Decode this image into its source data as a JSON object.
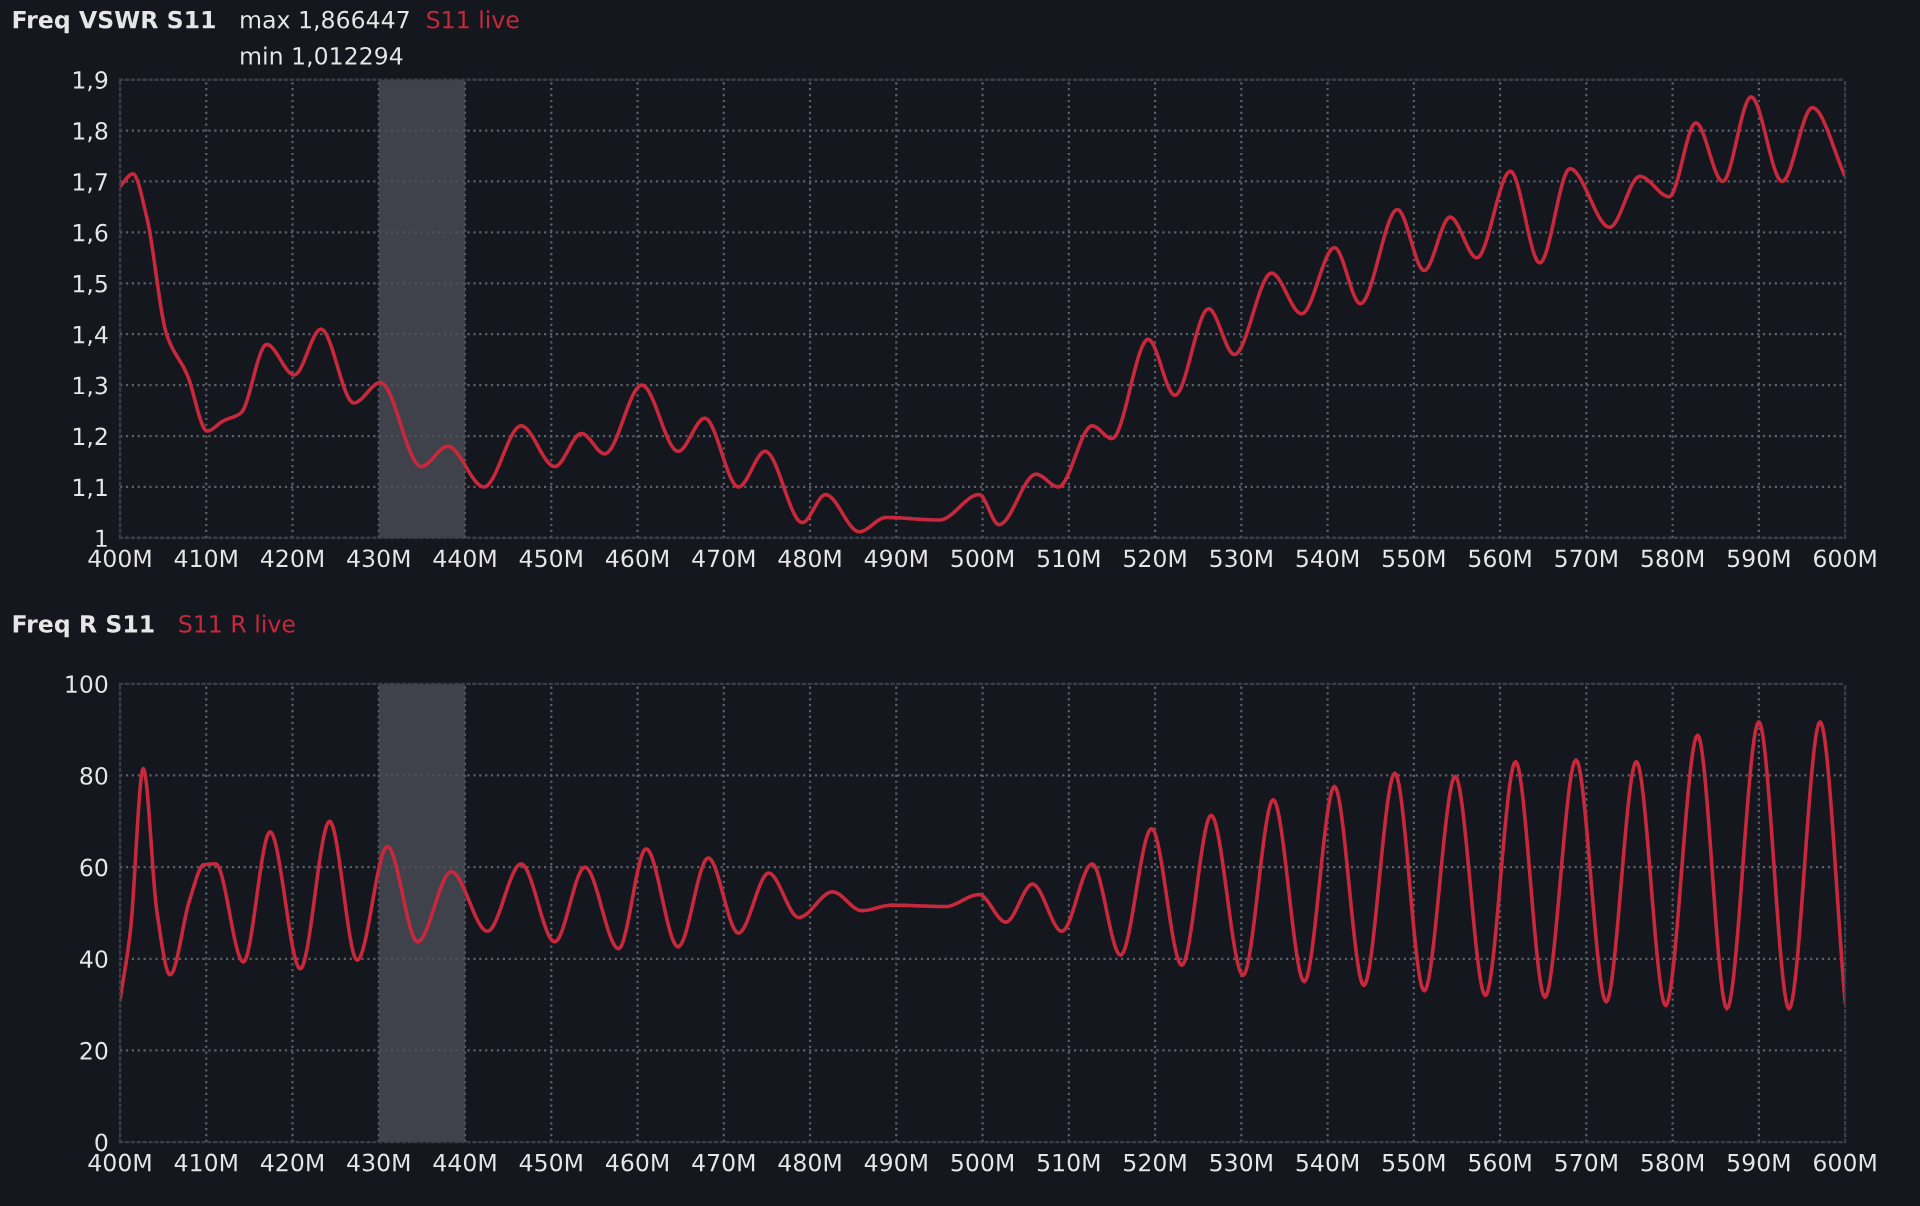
{
  "chart_data": [
    {
      "type": "line",
      "title": "Freq VSWR S11",
      "annotations": [
        "max 1,866447",
        "min 1,012294"
      ],
      "xlim": [
        400,
        600
      ],
      "xticks": [
        {
          "value": 400,
          "label": "400M"
        },
        {
          "value": 410,
          "label": "410M"
        },
        {
          "value": 420,
          "label": "420M"
        },
        {
          "value": 430,
          "label": "430M"
        },
        {
          "value": 440,
          "label": "440M"
        },
        {
          "value": 450,
          "label": "450M"
        },
        {
          "value": 460,
          "label": "460M"
        },
        {
          "value": 470,
          "label": "470M"
        },
        {
          "value": 480,
          "label": "480M"
        },
        {
          "value": 490,
          "label": "490M"
        },
        {
          "value": 500,
          "label": "500M"
        },
        {
          "value": 510,
          "label": "510M"
        },
        {
          "value": 520,
          "label": "520M"
        },
        {
          "value": 530,
          "label": "530M"
        },
        {
          "value": 540,
          "label": "540M"
        },
        {
          "value": 550,
          "label": "550M"
        },
        {
          "value": 560,
          "label": "560M"
        },
        {
          "value": 570,
          "label": "570M"
        },
        {
          "value": 580,
          "label": "580M"
        },
        {
          "value": 590,
          "label": "590M"
        },
        {
          "value": 600,
          "label": "600M"
        }
      ],
      "ylim": [
        1,
        1.9
      ],
      "yticks": [
        {
          "value": 1,
          "label": "1"
        },
        {
          "value": 1.1,
          "label": "1,1"
        },
        {
          "value": 1.2,
          "label": "1,2"
        },
        {
          "value": 1.3,
          "label": "1,3"
        },
        {
          "value": 1.4,
          "label": "1,4"
        },
        {
          "value": 1.5,
          "label": "1,5"
        },
        {
          "value": 1.6,
          "label": "1,6"
        },
        {
          "value": 1.7,
          "label": "1,7"
        },
        {
          "value": 1.8,
          "label": "1,8"
        },
        {
          "value": 1.9,
          "label": "1,9"
        }
      ],
      "grid": true,
      "bands": [
        {
          "axis": "x",
          "from": 430,
          "to": 440,
          "color": "#4a4d55"
        }
      ],
      "series": [
        {
          "name": "S11 live",
          "color": "#c8283c",
          "x": [
            400,
            401.5,
            403.1,
            405.4,
            407.8,
            410.1,
            412,
            414,
            417,
            420.2,
            423.3,
            427.1,
            430.2,
            434.9,
            438,
            442.2,
            446.5,
            450.4,
            453.5,
            456.2,
            460.5,
            464.7,
            467.8,
            471.7,
            474.8,
            479.1,
            481.8,
            485.7,
            488.8,
            495,
            499.6,
            501.9,
            506.2,
            508.8,
            512.7,
            515,
            519.2,
            522.3,
            526.2,
            529.2,
            533.5,
            537,
            540.8,
            543.8,
            548.1,
            551.2,
            554.2,
            557.3,
            561.2,
            564.6,
            568.1,
            572.7,
            576.2,
            579.6,
            582.7,
            585.8,
            589.1,
            592.7,
            596.2,
            600
          ],
          "values": [
            1.69,
            1.715,
            1.63,
            1.4,
            1.32,
            1.21,
            1.23,
            1.245,
            1.38,
            1.32,
            1.41,
            1.265,
            1.305,
            1.14,
            1.18,
            1.1,
            1.22,
            1.14,
            1.205,
            1.165,
            1.3,
            1.17,
            1.235,
            1.1,
            1.17,
            1.03,
            1.085,
            1.012,
            1.04,
            1.035,
            1.085,
            1.026,
            1.125,
            1.1,
            1.22,
            1.195,
            1.39,
            1.28,
            1.45,
            1.36,
            1.52,
            1.44,
            1.57,
            1.46,
            1.645,
            1.525,
            1.63,
            1.55,
            1.72,
            1.54,
            1.725,
            1.61,
            1.71,
            1.67,
            1.815,
            1.7,
            1.866,
            1.7,
            1.845,
            1.71
          ]
        }
      ]
    },
    {
      "type": "line",
      "title": "Freq R S11",
      "xlim": [
        400,
        600
      ],
      "xticks": [
        {
          "value": 400,
          "label": "400M"
        },
        {
          "value": 410,
          "label": "410M"
        },
        {
          "value": 420,
          "label": "420M"
        },
        {
          "value": 430,
          "label": "430M"
        },
        {
          "value": 440,
          "label": "440M"
        },
        {
          "value": 450,
          "label": "450M"
        },
        {
          "value": 460,
          "label": "460M"
        },
        {
          "value": 470,
          "label": "470M"
        },
        {
          "value": 480,
          "label": "480M"
        },
        {
          "value": 490,
          "label": "490M"
        },
        {
          "value": 500,
          "label": "500M"
        },
        {
          "value": 510,
          "label": "510M"
        },
        {
          "value": 520,
          "label": "520M"
        },
        {
          "value": 530,
          "label": "530M"
        },
        {
          "value": 540,
          "label": "540M"
        },
        {
          "value": 550,
          "label": "550M"
        },
        {
          "value": 560,
          "label": "560M"
        },
        {
          "value": 570,
          "label": "570M"
        },
        {
          "value": 580,
          "label": "580M"
        },
        {
          "value": 590,
          "label": "590M"
        },
        {
          "value": 600,
          "label": "600M"
        }
      ],
      "ylim": [
        0,
        100
      ],
      "yticks": [
        0,
        20,
        40,
        60,
        80,
        100
      ],
      "grid": true,
      "bands": [
        {
          "axis": "x",
          "from": 430,
          "to": 440,
          "color": "#4a4d55"
        }
      ],
      "series": [
        {
          "name": "S11 R live",
          "color": "#c8283c",
          "x": [
            400,
            401.2,
            402.7,
            404.3,
            405.8,
            408.1,
            409.7,
            411.1,
            414.3,
            417.4,
            420.9,
            424.3,
            427.5,
            431,
            434.5,
            438.4,
            442.6,
            446.5,
            450.4,
            453.9,
            457.8,
            461,
            464.7,
            468.2,
            471.7,
            475.2,
            478.7,
            482.6,
            486,
            489.5,
            495.7,
            499.6,
            502.7,
            505.8,
            509.2,
            512.7,
            516,
            519.6,
            523.1,
            526.5,
            530.2,
            533.7,
            537.3,
            540.8,
            544.2,
            547.8,
            551.2,
            554.8,
            558.3,
            561.8,
            565.2,
            568.8,
            572.3,
            575.8,
            579.2,
            582.9,
            586.3,
            590,
            593.5,
            597.1,
            600
          ],
          "values": [
            31,
            46,
            81.5,
            50,
            36.5,
            53,
            60.5,
            60.7,
            39.3,
            67.7,
            37.8,
            70,
            39.7,
            64.5,
            43.7,
            59,
            46,
            60.7,
            43.7,
            60,
            42.2,
            64,
            42.6,
            62,
            45.6,
            58.7,
            49,
            54.6,
            50.5,
            51.7,
            51.4,
            54,
            48,
            56.3,
            46,
            60.7,
            40.8,
            68.4,
            38.6,
            71.3,
            36.4,
            74.7,
            35,
            77.6,
            34.2,
            80.5,
            33,
            79.8,
            32,
            83,
            31.6,
            83.4,
            30.6,
            83,
            29.8,
            88.8,
            29.1,
            91.7,
            29.1,
            91.7,
            30.6
          ]
        }
      ]
    }
  ]
}
